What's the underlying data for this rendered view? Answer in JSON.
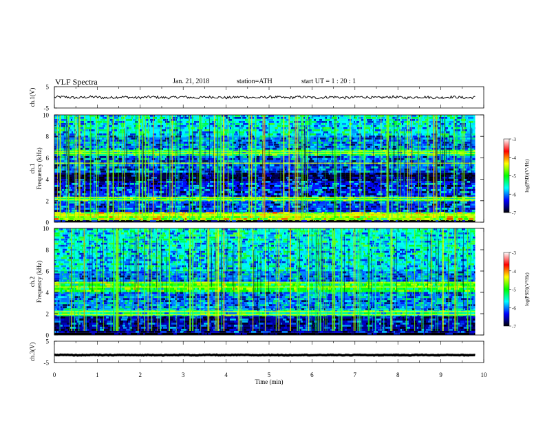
{
  "header": {
    "title": "VLF  Spectra",
    "date": "Jan. 21, 2018",
    "station": "station=ATH",
    "start": "start  UT  =   1 : 20 : 1"
  },
  "colorbar": {
    "label": "log(PSD)(V²/Hz)",
    "ticks": [
      "-3",
      "-4",
      "-5",
      "-6",
      "-7"
    ],
    "colors": [
      "#000000",
      "#00008b",
      "#0000ff",
      "#0080ff",
      "#00ffff",
      "#00ff80",
      "#00ff00",
      "#80ff00",
      "#ffff00",
      "#ff8000",
      "#ff0000",
      "#ff8080",
      "#ffffff"
    ]
  },
  "chart_data": [
    {
      "type": "line",
      "panel": "ch1-waveform",
      "ylabel": "ch.1(V)",
      "ylim": [
        -5,
        5
      ],
      "y_ticks": [
        "5",
        "-5"
      ],
      "xlim": [
        0,
        10
      ],
      "data_extent_min": 9.8,
      "approx_level": 0,
      "approx_amplitude": 0.6,
      "color": "#000000"
    },
    {
      "type": "heatmap",
      "panel": "ch1-spectrogram",
      "ylabel_line1": "ch.1",
      "ylabel_line2": "Frequency (kHz)",
      "ylim": [
        0,
        10
      ],
      "y_ticks": [
        "0",
        "2",
        "4",
        "6",
        "8",
        "10"
      ],
      "xlim": [
        0,
        10
      ],
      "data_extent_min": 9.8,
      "colorbar_range": [
        -7,
        -3
      ],
      "bands_khz": [
        {
          "from": 0.0,
          "to": 0.15,
          "level": -7
        },
        {
          "from": 0.15,
          "to": 0.9,
          "level": -4.6
        },
        {
          "from": 0.9,
          "to": 2.0,
          "level": -6.2
        },
        {
          "from": 2.0,
          "to": 2.4,
          "level": -5.2
        },
        {
          "from": 2.4,
          "to": 3.8,
          "level": -6.3
        },
        {
          "from": 3.8,
          "to": 4.6,
          "level": -6.8
        },
        {
          "from": 4.6,
          "to": 6.2,
          "level": -6.1
        },
        {
          "from": 6.2,
          "to": 6.8,
          "level": -5.3
        },
        {
          "from": 6.8,
          "to": 8.0,
          "level": -6.0
        },
        {
          "from": 8.0,
          "to": 10.0,
          "level": -5.7
        }
      ],
      "strong_lines_khz": [
        0.6,
        0.75,
        2.1,
        2.3,
        5.5,
        6.4,
        6.6
      ]
    },
    {
      "type": "heatmap",
      "panel": "ch2-spectrogram",
      "ylabel_line1": "ch.2",
      "ylabel_line2": "Frequency (kHz)",
      "ylim": [
        0,
        10
      ],
      "y_ticks": [
        "0",
        "2",
        "4",
        "6",
        "8",
        "10"
      ],
      "xlim": [
        0,
        10
      ],
      "data_extent_min": 9.8,
      "colorbar_range": [
        -7,
        -3
      ],
      "bands_khz": [
        {
          "from": 0.0,
          "to": 0.2,
          "level": -7
        },
        {
          "from": 0.2,
          "to": 1.8,
          "level": -6.6
        },
        {
          "from": 1.8,
          "to": 2.4,
          "level": -5.4
        },
        {
          "from": 2.4,
          "to": 4.0,
          "level": -6.0
        },
        {
          "from": 4.0,
          "to": 5.0,
          "level": -5.0
        },
        {
          "from": 5.0,
          "to": 6.0,
          "level": -6.0
        },
        {
          "from": 6.0,
          "to": 8.0,
          "level": -5.7
        },
        {
          "from": 8.0,
          "to": 10.0,
          "level": -5.6
        }
      ],
      "strong_lines_khz": [
        1.9,
        2.2,
        4.5,
        4.9
      ]
    },
    {
      "type": "line",
      "panel": "ch3-waveform",
      "ylabel": "ch.3(V)",
      "ylim": [
        -5,
        5
      ],
      "y_ticks": [
        "5",
        "-5"
      ],
      "xlim": [
        0,
        10
      ],
      "data_extent_min": 9.8,
      "approx_level": -1.5,
      "approx_amplitude": 0.15,
      "color": "#000000"
    }
  ],
  "x_axis": {
    "label": "Time  (min)",
    "ticks": [
      "0",
      "1",
      "2",
      "3",
      "4",
      "5",
      "6",
      "7",
      "8",
      "9",
      "10"
    ]
  }
}
